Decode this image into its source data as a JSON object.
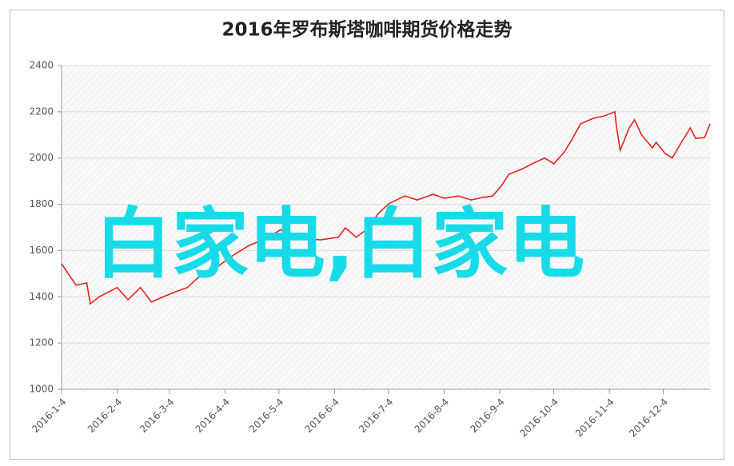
{
  "chart_data": {
    "type": "line",
    "title": "2016年罗布斯塔咖啡期货价格走势",
    "watermark": "白家电,白家电",
    "x": [
      "2016-1-4",
      "2016-1-12",
      "2016-1-18",
      "2016-1-20",
      "2016-1-25",
      "2016-2-4",
      "2016-2-10",
      "2016-2-17",
      "2016-2-23",
      "2016-2-29",
      "2016-3-7",
      "2016-3-14",
      "2016-3-21",
      "2016-3-30",
      "2016-4-8",
      "2016-4-17",
      "2016-4-26",
      "2016-5-5",
      "2016-5-10",
      "2016-5-19",
      "2016-5-27",
      "2016-6-6",
      "2016-6-10",
      "2016-6-16",
      "2016-6-23",
      "2016-6-28",
      "2016-7-4",
      "2016-7-13",
      "2016-7-20",
      "2016-7-29",
      "2016-8-4",
      "2016-8-12",
      "2016-8-19",
      "2016-8-26",
      "2016-8-31",
      "2016-9-5",
      "2016-9-9",
      "2016-9-16",
      "2016-9-22",
      "2016-9-29",
      "2016-10-4",
      "2016-10-10",
      "2016-10-14",
      "2016-10-19",
      "2016-10-26",
      "2016-11-1",
      "2016-11-7",
      "2016-11-8",
      "2016-11-10",
      "2016-11-15",
      "2016-11-18",
      "2016-11-22",
      "2016-11-28",
      "2016-11-30",
      "2016-12-5",
      "2016-12-9",
      "2016-12-13",
      "2016-12-19",
      "2016-12-22",
      "2016-12-27",
      "2016-12-30"
    ],
    "values": [
      1543,
      1450,
      1460,
      1370,
      1400,
      1440,
      1387,
      1440,
      1377,
      1398,
      1420,
      1440,
      1490,
      1525,
      1577,
      1620,
      1650,
      1690,
      1670,
      1653,
      1646,
      1657,
      1698,
      1657,
      1698,
      1757,
      1802,
      1836,
      1819,
      1843,
      1826,
      1836,
      1819,
      1830,
      1836,
      1881,
      1930,
      1951,
      1975,
      2000,
      1975,
      2027,
      2078,
      2148,
      2172,
      2182,
      2200,
      2130,
      2034,
      2130,
      2165,
      2099,
      2044,
      2068,
      2020,
      2000,
      2054,
      2130,
      2085,
      2089,
      2148
    ],
    "color": "#e8211d",
    "xlim": [
      "2016-1-4",
      "2016-12-30"
    ],
    "xticks": [
      "2016-1-4",
      "2016-2-4",
      "2016-3-4",
      "2016-4-4",
      "2016-5-4",
      "2016-6-4",
      "2016-7-4",
      "2016-8-4",
      "2016-9-4",
      "2016-10-4",
      "2016-11-4",
      "2016-12-4"
    ],
    "ylim": [
      1000,
      2400
    ],
    "yticks": [
      1000,
      1200,
      1400,
      1600,
      1800,
      2000,
      2200,
      2400
    ],
    "grid": true
  }
}
